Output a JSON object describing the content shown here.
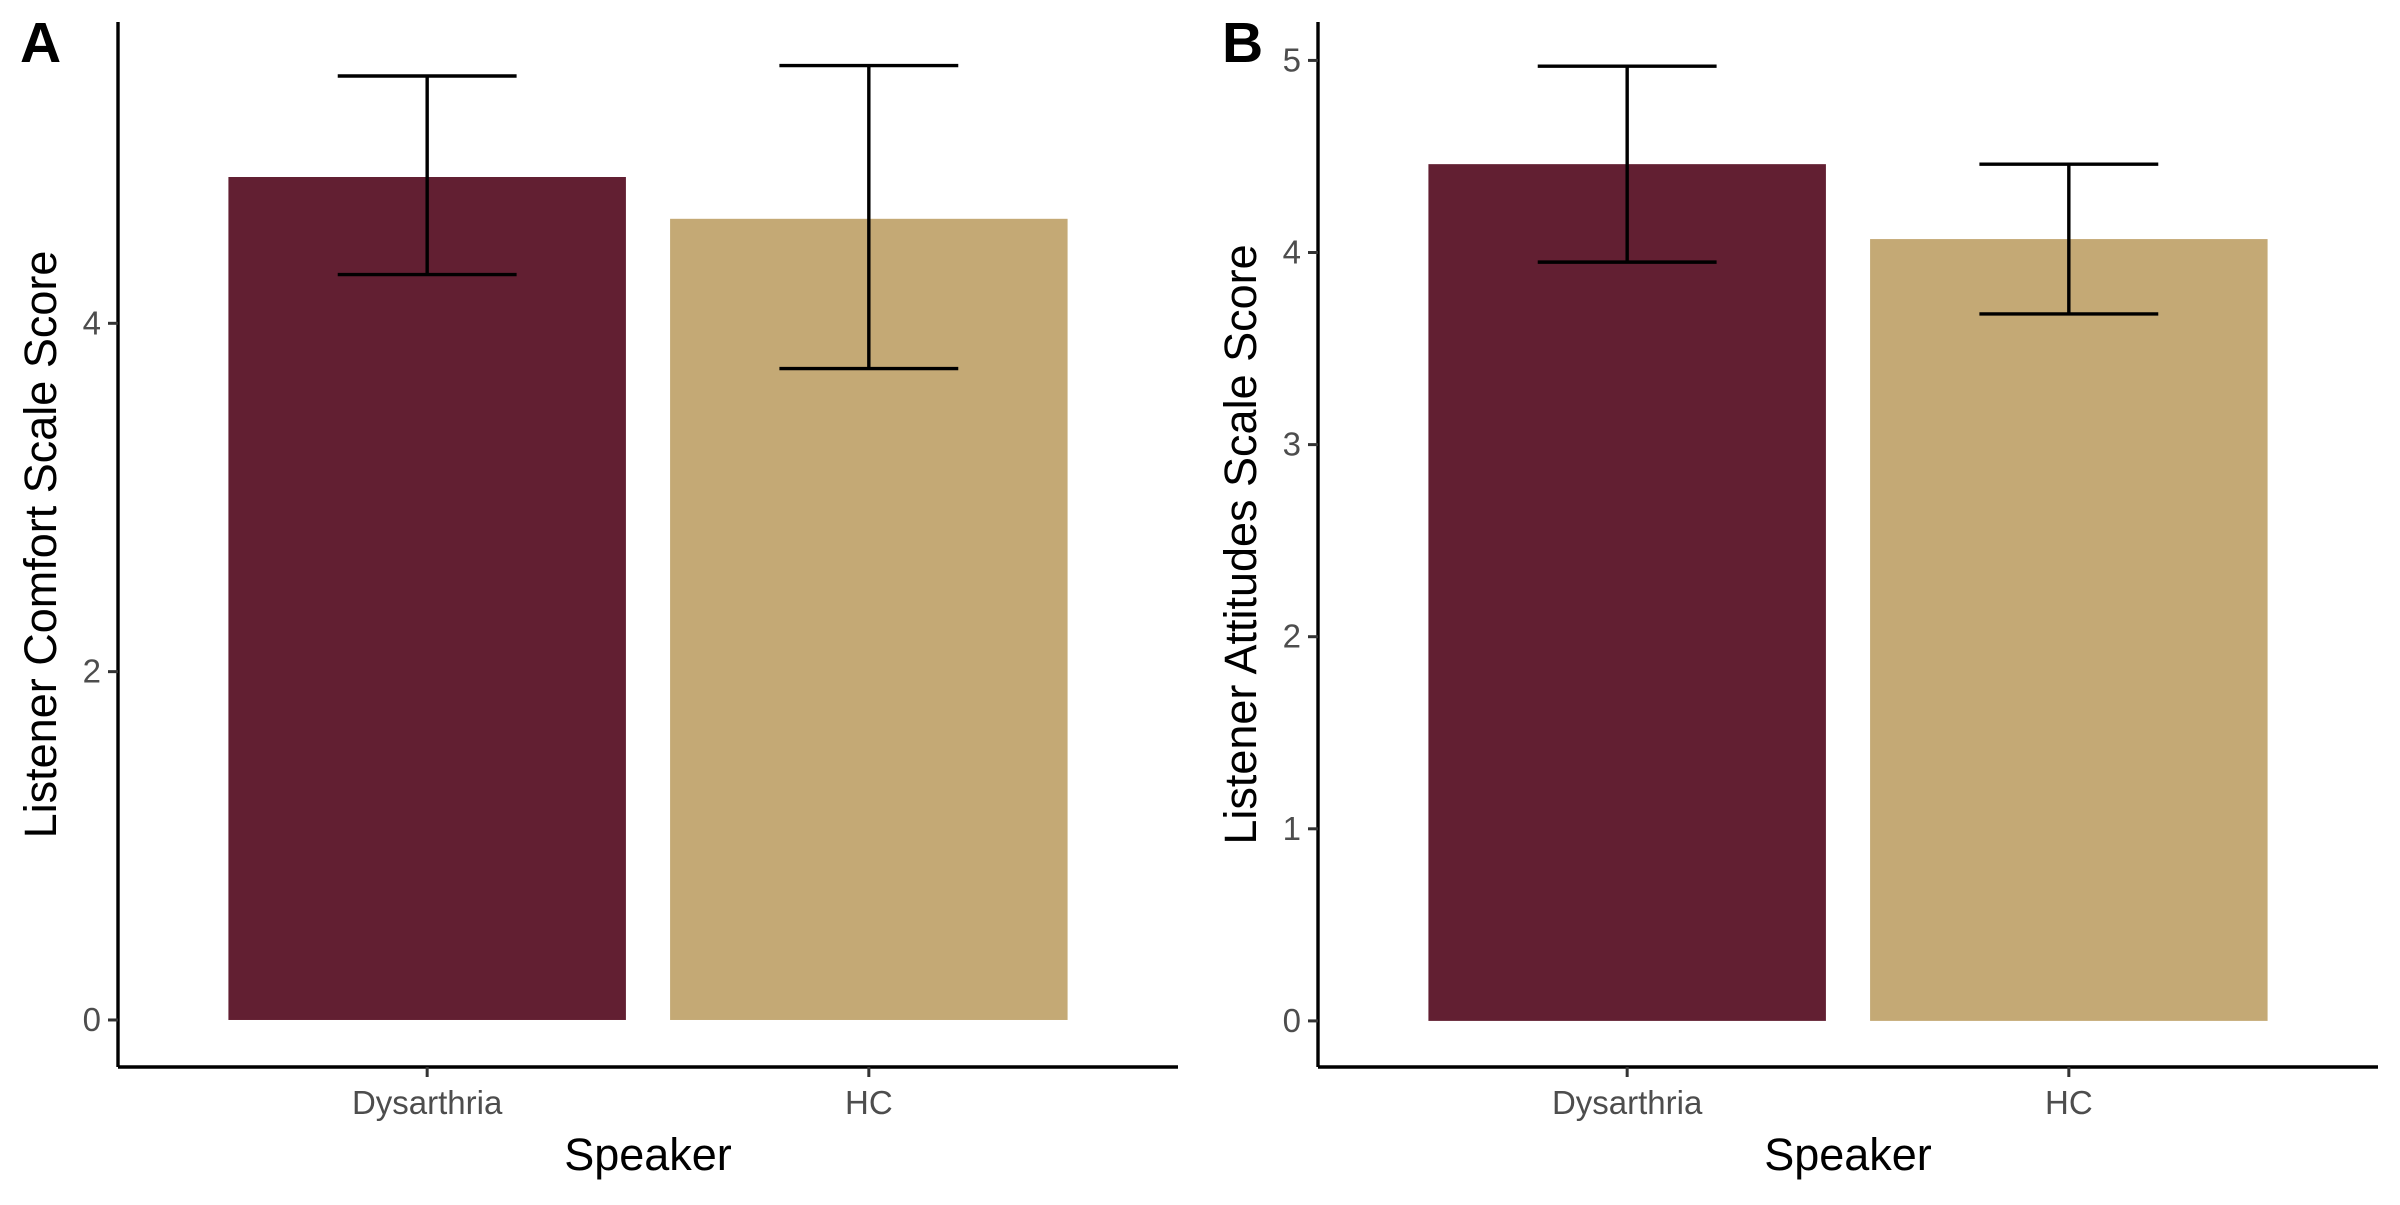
{
  "chart_data": [
    {
      "panel_label": "A",
      "type": "bar",
      "categories": [
        "Dysarthria",
        "HC"
      ],
      "values": [
        4.84,
        4.6
      ],
      "error_low": [
        4.28,
        3.74
      ],
      "error_high": [
        5.42,
        5.48
      ],
      "colors": [
        "#621F32",
        "#C4A975"
      ],
      "xlabel": "Speaker",
      "ylabel": "Listener Comfort Scale Score",
      "ylim": [
        -0.27,
        5.73
      ],
      "yticks": [
        0,
        2,
        4
      ],
      "grid": false,
      "legend": "none"
    },
    {
      "panel_label": "B",
      "type": "bar",
      "categories": [
        "Dysarthria",
        "HC"
      ],
      "values": [
        4.46,
        4.07
      ],
      "error_low": [
        3.95,
        3.68
      ],
      "error_high": [
        4.97,
        4.46
      ],
      "colors": [
        "#621F32",
        "#C4A975"
      ],
      "xlabel": "Speaker",
      "ylabel": "Listener Attitudes Scale Score",
      "ylim": [
        -0.24,
        5.2
      ],
      "yticks": [
        0,
        1,
        2,
        3,
        4,
        5
      ],
      "grid": false,
      "legend": "none"
    }
  ]
}
